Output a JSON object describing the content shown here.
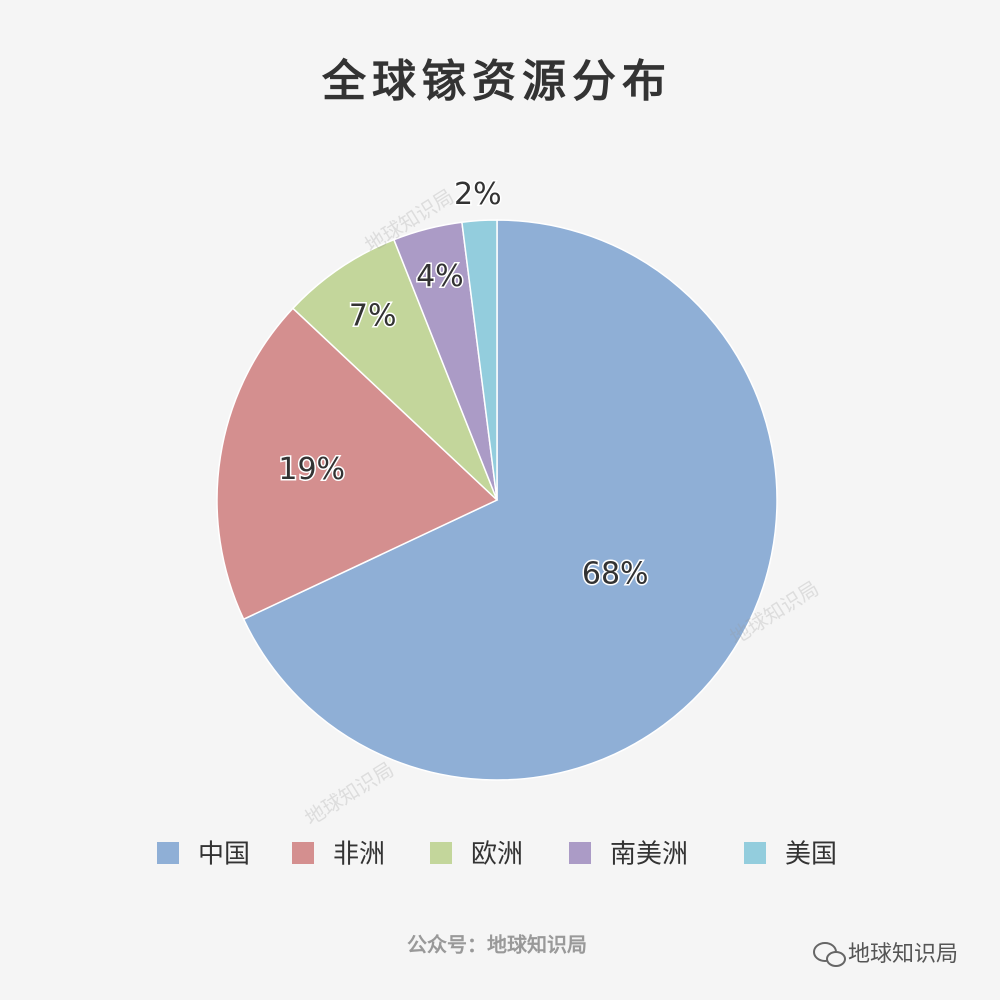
{
  "chart_data": {
    "type": "pie",
    "title": "全球镓资源分布",
    "categories": [
      "中国",
      "非洲",
      "欧洲",
      "南美洲",
      "美国"
    ],
    "values": [
      68,
      19,
      7,
      4,
      2
    ],
    "value_labels": [
      "68%",
      "19%",
      "7%",
      "4%",
      "2%"
    ],
    "colors": [
      "#8fafd6",
      "#d48f8f",
      "#c3d69b",
      "#ab9bc6",
      "#93cddd"
    ],
    "legend": "bottom",
    "watermark": "地球知识局",
    "source": "公众号：地球知识局",
    "credit": "地球知识局"
  }
}
